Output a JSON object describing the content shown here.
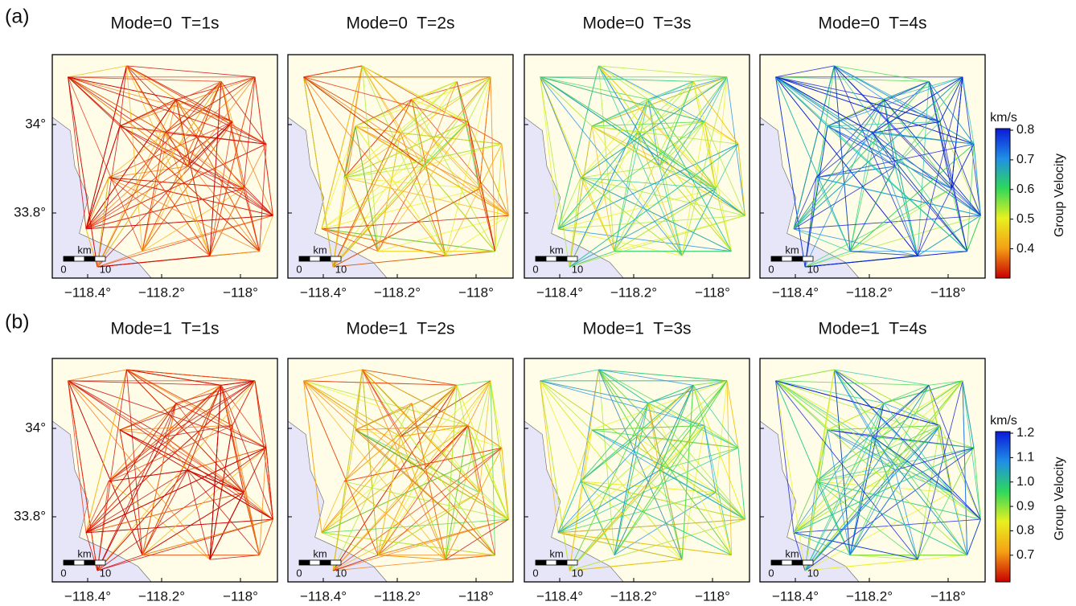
{
  "rows": [
    {
      "label": "(a)",
      "panels": [
        {
          "title": "Mode=0  T=1s"
        },
        {
          "title": "Mode=0  T=2s"
        },
        {
          "title": "Mode=0  T=3s"
        },
        {
          "title": "Mode=0  T=4s"
        }
      ],
      "colorbar": {
        "unit": "km/s",
        "title": "Group Velocity",
        "ticks": [
          "0.8",
          "0.7",
          "0.6",
          "0.5",
          "0.4"
        ]
      }
    },
    {
      "label": "(b)",
      "panels": [
        {
          "title": "Mode=1  T=1s"
        },
        {
          "title": "Mode=1  T=2s"
        },
        {
          "title": "Mode=1  T=3s"
        },
        {
          "title": "Mode=1  T=4s"
        }
      ],
      "colorbar": {
        "unit": "km/s",
        "title": "Group Velocity",
        "ticks": [
          "1.2",
          "1.1",
          "1.0",
          "0.9",
          "0.8",
          "0.7"
        ]
      }
    }
  ],
  "x_tick_labels": [
    "−118.4°",
    "−118.2°",
    "−118°"
  ],
  "y_tick_labels": [
    "34°",
    "33.8°"
  ],
  "scale_bar": {
    "unit": "km",
    "ticks": [
      "0",
      "10"
    ]
  }
}
